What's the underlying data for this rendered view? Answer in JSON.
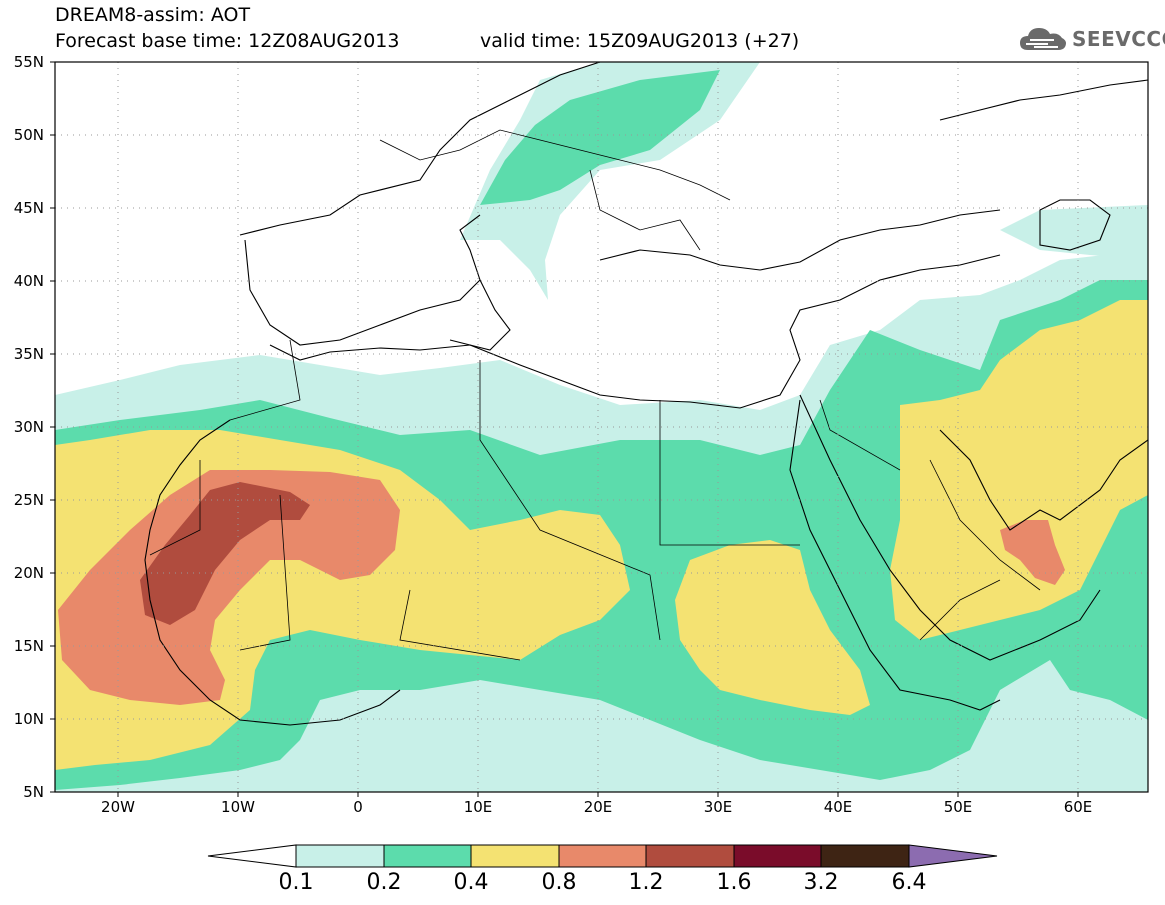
{
  "header": {
    "title_line1": "DREAM8-assim: AOT",
    "title_line2": "Forecast base time: 12Z08AUG2013",
    "valid_time": "valid time: 15Z09AUG2013 (+27)",
    "brand": "SEEVCCC"
  },
  "axes": {
    "lat_labels": [
      "55N",
      "50N",
      "45N",
      "40N",
      "35N",
      "30N",
      "25N",
      "20N",
      "15N",
      "10N",
      "5N"
    ],
    "lon_labels": [
      "20W",
      "10W",
      "0",
      "10E",
      "20E",
      "30E",
      "40E",
      "50E",
      "60E"
    ]
  },
  "colorbar": {
    "labels": [
      "0.1",
      "0.2",
      "0.4",
      "0.8",
      "1.2",
      "1.6",
      "3.2",
      "6.4"
    ],
    "colors": [
      "#ffffff",
      "#c8f0e8",
      "#5cdcac",
      "#f4e272",
      "#e8896a",
      "#b04c3e",
      "#7a0c2a",
      "#3e2414",
      "#8c6cb0"
    ]
  },
  "colors": {
    "bin_0_1": "#c8f0e8",
    "bin_0_2": "#5cdcac",
    "bin_0_4": "#f4e272",
    "bin_0_8": "#e8896a",
    "bin_1_2": "#b04c3e"
  }
}
